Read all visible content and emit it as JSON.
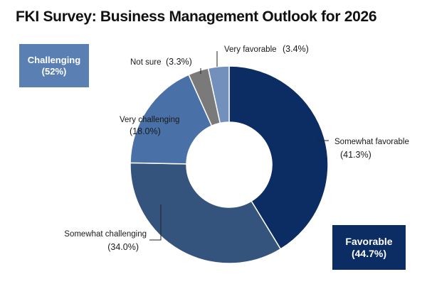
{
  "title": "FKI Survey: Business Management Outlook for 2026",
  "summary_boxes": {
    "challenging": {
      "label": "Challenging",
      "value": "(52%)",
      "color": "#5a80b3"
    },
    "favorable": {
      "label": "Favorable",
      "value": "(44.7%)",
      "color": "#0b2d63"
    }
  },
  "chart_data": {
    "type": "pie",
    "variant": "donut",
    "title": "FKI Survey: Business Management Outlook for 2026",
    "slices": [
      {
        "label": "Somewhat favorable",
        "value": 41.3,
        "display": "(41.3%)",
        "color": "#0b2d63"
      },
      {
        "label": "Somewhat challenging",
        "value": 34.0,
        "display": "(34.0%)",
        "color": "#34547e"
      },
      {
        "label": "Very challenging",
        "value": 18.0,
        "display": "(18.0%)",
        "color": "#4a70a8"
      },
      {
        "label": "Not sure",
        "value": 3.3,
        "display": "(3.3%)",
        "color": "#7a7a7a"
      },
      {
        "label": "Very favorable",
        "value": 3.4,
        "display": "(3.4%)",
        "color": "#7390bd"
      }
    ],
    "groups": [
      {
        "label": "Challenging",
        "value": 52
      },
      {
        "label": "Favorable",
        "value": 44.7
      }
    ]
  }
}
